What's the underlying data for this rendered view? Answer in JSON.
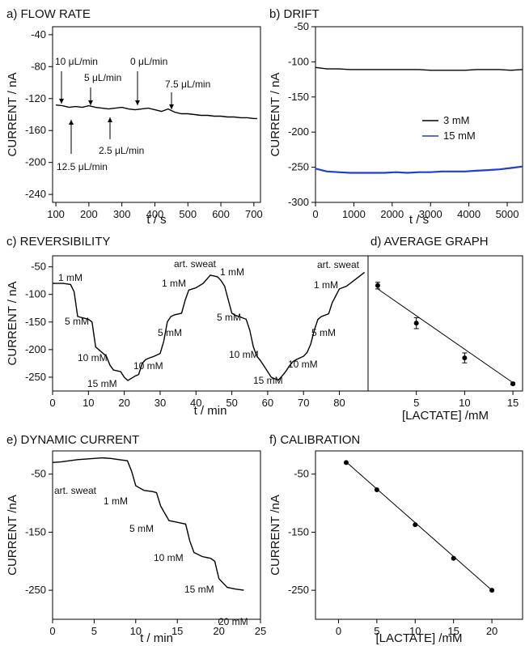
{
  "chart_data": [
    {
      "id": "a",
      "type": "line",
      "title": "a) FLOW RATE",
      "xlabel": "t / s",
      "ylabel": "CURRENT / nA",
      "xlim": [
        90,
        720
      ],
      "ylim": [
        -250,
        -30
      ],
      "xticks": [
        100,
        200,
        300,
        400,
        500,
        600,
        700
      ],
      "yticks": [
        -40,
        -80,
        -120,
        -160,
        -200,
        -240
      ],
      "series": [
        {
          "color": "#000000",
          "x": [
            100,
            120,
            140,
            160,
            180,
            200,
            220,
            240,
            260,
            280,
            300,
            320,
            340,
            360,
            380,
            400,
            420,
            440,
            460,
            480,
            500,
            520,
            540,
            560,
            580,
            600,
            620,
            640,
            660,
            680,
            700,
            710
          ],
          "y": [
            -128,
            -129,
            -131,
            -130,
            -131,
            -129,
            -131,
            -132,
            -133,
            -132,
            -131,
            -133,
            -134,
            -133,
            -132,
            -134,
            -136,
            -133,
            -137,
            -139,
            -139,
            -140,
            -141,
            -141,
            -142,
            -142,
            -143,
            -143,
            -144,
            -144,
            -145,
            -145
          ]
        }
      ],
      "annotations": [
        {
          "text": "10 μL/min",
          "x": 125,
          "y": -128
        },
        {
          "text": "5 μL/min",
          "x": 200,
          "y": -126
        },
        {
          "text": "0 μL/min",
          "x": 345,
          "y": -132
        },
        {
          "text": "7.5 μL/min",
          "x": 445,
          "y": -136
        },
        {
          "text": "12.5 μL/min",
          "x": 145,
          "y": -130
        },
        {
          "text": "2.5 μL/min",
          "x": 265,
          "y": -133
        }
      ]
    },
    {
      "id": "b",
      "type": "line",
      "title": "b) DRIFT",
      "xlabel": "t / s",
      "ylabel": "CURRENT / nA",
      "xlim": [
        0,
        5400
      ],
      "ylim": [
        -300,
        -50
      ],
      "xticks": [
        0,
        1000,
        2000,
        3000,
        4000,
        5000
      ],
      "yticks": [
        -50,
        -100,
        -150,
        -200,
        -250,
        -300
      ],
      "legend": "right",
      "series": [
        {
          "name": "3 mM",
          "color": "#000000",
          "x": [
            0,
            300,
            600,
            900,
            1200,
            1500,
            1800,
            2100,
            2400,
            2700,
            3000,
            3300,
            3600,
            3900,
            4200,
            4500,
            4800,
            5100,
            5400
          ],
          "y": [
            -108,
            -110,
            -110,
            -111,
            -111,
            -111,
            -111,
            -111,
            -111,
            -111,
            -112,
            -112,
            -112,
            -112,
            -111,
            -111,
            -111,
            -112,
            -111
          ]
        },
        {
          "name": "15 mM",
          "color": "#1f3fcf",
          "x": [
            0,
            300,
            600,
            900,
            1200,
            1500,
            1800,
            2100,
            2400,
            2700,
            3000,
            3300,
            3600,
            3900,
            4200,
            4500,
            4800,
            5100,
            5400
          ],
          "y": [
            -252,
            -256,
            -257,
            -258,
            -258,
            -258,
            -258,
            -257,
            -258,
            -257,
            -257,
            -256,
            -256,
            -256,
            -255,
            -254,
            -253,
            -251,
            -249
          ]
        }
      ]
    },
    {
      "id": "c",
      "type": "line",
      "title": "c) REVERSIBILITY",
      "xlabel": "t / min",
      "ylabel": "CURRENT / nA",
      "xlim": [
        0,
        88
      ],
      "ylim": [
        -275,
        -30
      ],
      "xticks": [
        0,
        10,
        20,
        30,
        40,
        50,
        60,
        70,
        80
      ],
      "yticks": [
        -50,
        -100,
        -150,
        -200,
        -250
      ],
      "series": [
        {
          "color": "#000000",
          "x": [
            0,
            3,
            5,
            6,
            7,
            10,
            11,
            12,
            15,
            16,
            17,
            19,
            20,
            21,
            22,
            23,
            24,
            25,
            26,
            27,
            28,
            29,
            30,
            31,
            32,
            33,
            34,
            36,
            37,
            38,
            40,
            42,
            44,
            46,
            47,
            48,
            49,
            50,
            51,
            52,
            54,
            55,
            56,
            57,
            58,
            59,
            60,
            61,
            62,
            63,
            64,
            65,
            66,
            67,
            68,
            69,
            70,
            71,
            72,
            73,
            74,
            75,
            77,
            78,
            80,
            82,
            85,
            87
          ],
          "y": [
            -80,
            -80,
            -82,
            -95,
            -140,
            -145,
            -150,
            -195,
            -212,
            -228,
            -237,
            -240,
            -250,
            -256,
            -252,
            -248,
            -245,
            -225,
            -218,
            -215,
            -213,
            -210,
            -207,
            -185,
            -150,
            -140,
            -137,
            -134,
            -110,
            -92,
            -88,
            -80,
            -65,
            -68,
            -75,
            -85,
            -110,
            -134,
            -138,
            -140,
            -145,
            -165,
            -195,
            -212,
            -220,
            -230,
            -240,
            -250,
            -253,
            -255,
            -248,
            -240,
            -230,
            -222,
            -218,
            -215,
            -212,
            -205,
            -190,
            -165,
            -145,
            -140,
            -135,
            -115,
            -90,
            -85,
            -70,
            -60
          ]
        }
      ],
      "annotations": [
        {
          "text": "1 mM"
        },
        {
          "text": "5 mM"
        },
        {
          "text": "10 mM"
        },
        {
          "text": "15 mM"
        },
        {
          "text": "10 mM"
        },
        {
          "text": "5 mM"
        },
        {
          "text": "1 mM"
        },
        {
          "text": "art. sweat"
        },
        {
          "text": "1 mM"
        },
        {
          "text": "5 mM"
        },
        {
          "text": "10 mM"
        },
        {
          "text": "15 mM"
        },
        {
          "text": "10 mM"
        },
        {
          "text": "5 mM"
        },
        {
          "text": "1 mM"
        },
        {
          "text": "art. sweat"
        }
      ]
    },
    {
      "id": "d",
      "type": "scatter",
      "title": "d) AVERAGE GRAPH",
      "xlabel": "[LACTATE] /mM",
      "ylabel": "",
      "xlim": [
        0,
        16
      ],
      "ylim": [
        -275,
        -30
      ],
      "xticks": [
        5,
        10,
        15
      ],
      "x": [
        1,
        5,
        10,
        15
      ],
      "y": [
        -84,
        -152,
        -215,
        -262
      ],
      "error": [
        6,
        10,
        9,
        2
      ],
      "fit": {
        "x": [
          1,
          15
        ],
        "y": [
          -90,
          -260
        ]
      }
    },
    {
      "id": "e",
      "type": "line",
      "title": "e) DYNAMIC CURRENT",
      "xlabel": "t / min",
      "ylabel": "CURRENT /nA",
      "xlim": [
        0,
        25
      ],
      "ylim": [
        -300,
        -10
      ],
      "xticks": [
        0,
        5,
        10,
        15,
        20,
        25
      ],
      "yticks": [
        -50,
        -150,
        -250
      ],
      "series": [
        {
          "color": "#000000",
          "x": [
            0,
            1,
            3,
            5,
            6,
            7,
            8,
            9,
            9.5,
            10,
            11,
            12,
            12.5,
            13,
            14,
            15,
            16,
            16.5,
            17,
            18,
            19,
            19.5,
            20,
            21,
            22,
            23
          ],
          "y": [
            -30,
            -29,
            -25,
            -23,
            -22,
            -23,
            -25,
            -27,
            -45,
            -70,
            -78,
            -80,
            -82,
            -105,
            -130,
            -133,
            -136,
            -165,
            -185,
            -192,
            -195,
            -200,
            -230,
            -245,
            -248,
            -250
          ]
        }
      ],
      "annotations": [
        {
          "text": "art. sweat"
        },
        {
          "text": "1 mM"
        },
        {
          "text": "5 mM"
        },
        {
          "text": "10 mM"
        },
        {
          "text": "15 mM"
        },
        {
          "text": "20 mM"
        }
      ]
    },
    {
      "id": "f",
      "type": "scatter",
      "title": "f) CALIBRATION",
      "xlabel": "[LACTATE] /mM",
      "ylabel": "CURRENT /nA",
      "xlim": [
        -3,
        24
      ],
      "ylim": [
        -300,
        -10
      ],
      "xticks": [
        0,
        5,
        10,
        15,
        20
      ],
      "yticks": [
        -50,
        -150,
        -250
      ],
      "x": [
        1,
        5,
        10,
        15,
        20
      ],
      "y": [
        -30,
        -77,
        -137,
        -195,
        -250
      ],
      "fit": {
        "x": [
          1,
          20
        ],
        "y": [
          -29,
          -250
        ]
      }
    }
  ]
}
